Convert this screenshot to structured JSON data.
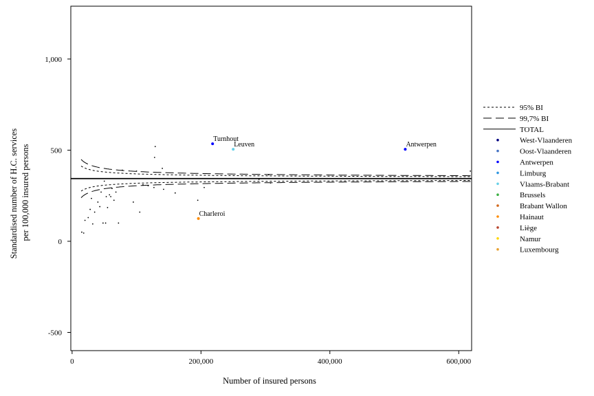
{
  "chart_data": {
    "type": "scatter",
    "xlabel": "Number of insured persons",
    "ylabel_lines": [
      "Standardised number of H.C. services",
      "per 100,000 insured persons"
    ],
    "xlim": [
      -2000,
      620000
    ],
    "ylim": [
      -600,
      1290
    ],
    "x_ticks": [
      0,
      200000,
      400000,
      600000
    ],
    "x_tick_labels": [
      "0",
      "200,000",
      "400,000",
      "600,000"
    ],
    "y_ticks": [
      -500,
      0,
      500,
      1000
    ],
    "y_tick_labels": [
      "-500",
      "0",
      "500",
      "1,000"
    ],
    "total_rate": 344,
    "funnel_scale": 50000,
    "legend": [
      {
        "label": "95% BI",
        "style": "dotted",
        "color": "#000000"
      },
      {
        "label": "99,7% BI",
        "style": "dashed",
        "color": "#000000"
      },
      {
        "label": "TOTAL",
        "style": "solid",
        "color": "#000000"
      },
      {
        "label": "West-Vlaanderen",
        "style": "dot",
        "color": "#000080"
      },
      {
        "label": "Oost-Vlaanderen",
        "style": "dot",
        "color": "#4472c4"
      },
      {
        "label": "Antwerpen",
        "style": "dot",
        "color": "#0000ff"
      },
      {
        "label": "Limburg",
        "style": "dot",
        "color": "#2e95e0"
      },
      {
        "label": "Vlaams-Brabant",
        "style": "dot",
        "color": "#66d0e8"
      },
      {
        "label": "Brussels",
        "style": "dot",
        "color": "#3cb043"
      },
      {
        "label": "Brabant Wallon",
        "style": "dot",
        "color": "#d2691e"
      },
      {
        "label": "Hainaut",
        "style": "dot",
        "color": "#ff8c00"
      },
      {
        "label": "Liège",
        "style": "dot",
        "color": "#b8452e"
      },
      {
        "label": "Namur",
        "style": "dot",
        "color": "#ffd700"
      },
      {
        "label": "Luxembourg",
        "style": "dot",
        "color": "#e8a030"
      }
    ],
    "labeled_points": [
      {
        "label": "Turnhout",
        "x": 218000,
        "y": 535,
        "color": "#0000ff"
      },
      {
        "label": "Leuven",
        "x": 250000,
        "y": 505,
        "color": "#66d0e8"
      },
      {
        "label": "Antwerpen",
        "x": 517000,
        "y": 505,
        "color": "#0000ff"
      },
      {
        "label": "Charleroi",
        "x": 196000,
        "y": 125,
        "color": "#ff8c00"
      }
    ],
    "points": [
      {
        "x": 15000,
        "y": 50
      },
      {
        "x": 18000,
        "y": 45
      },
      {
        "x": 20000,
        "y": 115
      },
      {
        "x": 25000,
        "y": 130
      },
      {
        "x": 28000,
        "y": 175
      },
      {
        "x": 30000,
        "y": 235
      },
      {
        "x": 32000,
        "y": 95
      },
      {
        "x": 35000,
        "y": 160
      },
      {
        "x": 40000,
        "y": 215
      },
      {
        "x": 43000,
        "y": 190
      },
      {
        "x": 45000,
        "y": 270
      },
      {
        "x": 48000,
        "y": 100
      },
      {
        "x": 50000,
        "y": 330
      },
      {
        "x": 52000,
        "y": 100
      },
      {
        "x": 53000,
        "y": 245
      },
      {
        "x": 55000,
        "y": 185
      },
      {
        "x": 58000,
        "y": 255
      },
      {
        "x": 60000,
        "y": 245
      },
      {
        "x": 62000,
        "y": 290
      },
      {
        "x": 65000,
        "y": 225
      },
      {
        "x": 68000,
        "y": 270
      },
      {
        "x": 72000,
        "y": 100
      },
      {
        "x": 78000,
        "y": 390
      },
      {
        "x": 95000,
        "y": 215
      },
      {
        "x": 100000,
        "y": 385
      },
      {
        "x": 105000,
        "y": 160
      },
      {
        "x": 110000,
        "y": 310
      },
      {
        "x": 118000,
        "y": 305
      },
      {
        "x": 127000,
        "y": 295
      },
      {
        "x": 128000,
        "y": 460
      },
      {
        "x": 129000,
        "y": 520
      },
      {
        "x": 140000,
        "y": 400
      },
      {
        "x": 142000,
        "y": 285
      },
      {
        "x": 160000,
        "y": 265
      },
      {
        "x": 195000,
        "y": 225
      },
      {
        "x": 205000,
        "y": 295
      },
      {
        "x": 290000,
        "y": 340
      },
      {
        "x": 305000,
        "y": 365
      },
      {
        "x": 308000,
        "y": 320
      },
      {
        "x": 618000,
        "y": 385
      }
    ]
  }
}
